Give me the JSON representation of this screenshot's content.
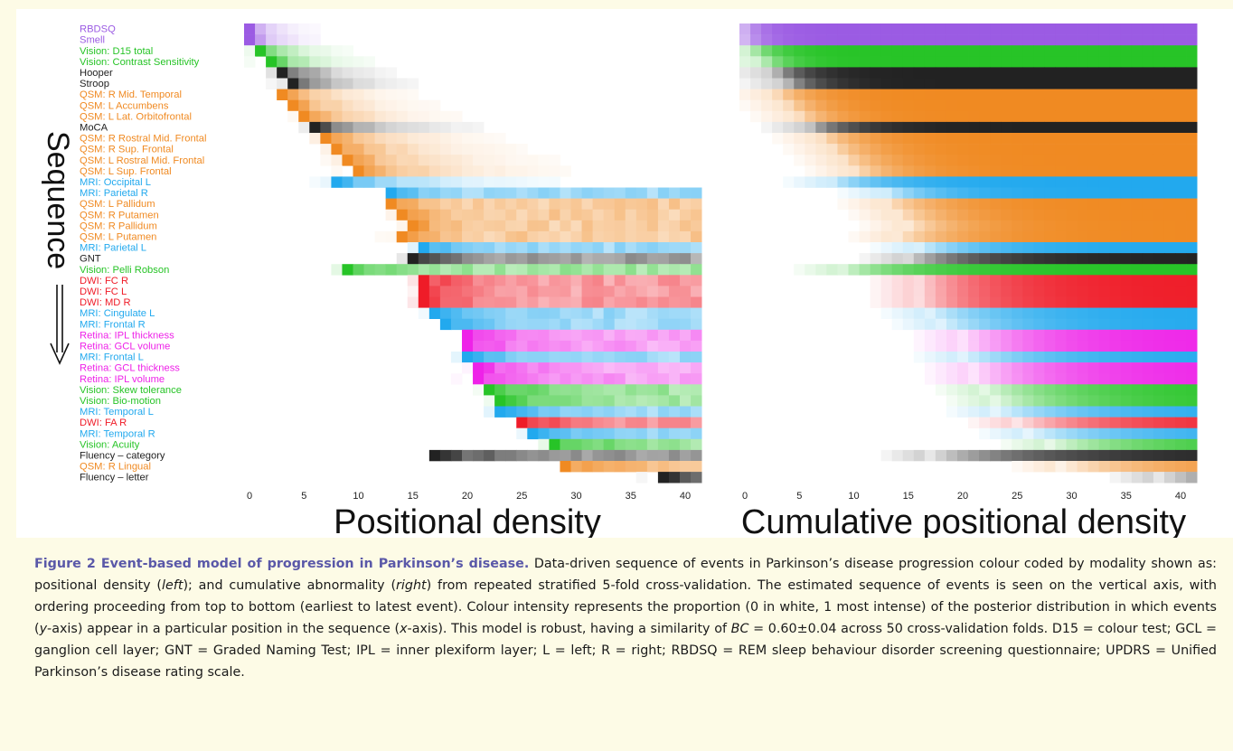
{
  "events": [
    {
      "label": "RBDSQ",
      "color": "#9b5be3"
    },
    {
      "label": "Smell",
      "color": "#9b5be3"
    },
    {
      "label": "Vision: D15 total",
      "color": "#27c427"
    },
    {
      "label": "Vision: Contrast Sensitivity",
      "color": "#27c427"
    },
    {
      "label": "Hooper",
      "color": "#222222"
    },
    {
      "label": "Stroop",
      "color": "#222222"
    },
    {
      "label": "QSM: R Mid. Temporal",
      "color": "#f08a22"
    },
    {
      "label": "QSM: L Accumbens",
      "color": "#f08a22"
    },
    {
      "label": "QSM: L Lat. Orbitofrontal",
      "color": "#f08a22"
    },
    {
      "label": "MoCA",
      "color": "#222222"
    },
    {
      "label": "QSM: R Rostral Mid. Frontal",
      "color": "#f08a22"
    },
    {
      "label": "QSM: R Sup. Frontal",
      "color": "#f08a22"
    },
    {
      "label": "QSM: L Rostral Mid. Frontal",
      "color": "#f08a22"
    },
    {
      "label": "QSM: L Sup. Frontal",
      "color": "#f08a22"
    },
    {
      "label": "MRI: Occipital L",
      "color": "#22a9ee"
    },
    {
      "label": "MRI: Parietal R",
      "color": "#22a9ee"
    },
    {
      "label": "QSM: L Pallidum",
      "color": "#f08a22"
    },
    {
      "label": "QSM: R Putamen",
      "color": "#f08a22"
    },
    {
      "label": "QSM: R Pallidum",
      "color": "#f08a22"
    },
    {
      "label": "QSM: L Putamen",
      "color": "#f08a22"
    },
    {
      "label": "MRI: Parietal L",
      "color": "#22a9ee"
    },
    {
      "label": "GNT",
      "color": "#222222"
    },
    {
      "label": "Vision: Pelli Robson",
      "color": "#27c427"
    },
    {
      "label": "DWI: FC R",
      "color": "#ef1c28"
    },
    {
      "label": "DWI: FC L",
      "color": "#ef1c28"
    },
    {
      "label": "DWI: MD R",
      "color": "#ef1c28"
    },
    {
      "label": "MRI: Cingulate L",
      "color": "#22a9ee"
    },
    {
      "label": "MRI: Frontal R",
      "color": "#22a9ee"
    },
    {
      "label": "Retina: IPL thickness",
      "color": "#ee22e8"
    },
    {
      "label": "Retina: GCL volume",
      "color": "#ee22e8"
    },
    {
      "label": "MRI: Frontal L",
      "color": "#22a9ee"
    },
    {
      "label": "Retina: GCL thickness",
      "color": "#ee22e8"
    },
    {
      "label": "Retina: IPL volume",
      "color": "#ee22e8"
    },
    {
      "label": "Vision: Skew tolerance",
      "color": "#27c427"
    },
    {
      "label": "Vision: Bio-motion",
      "color": "#27c427"
    },
    {
      "label": "MRI: Temporal L",
      "color": "#22a9ee"
    },
    {
      "label": "DWI: FA R",
      "color": "#ef1c28"
    },
    {
      "label": "MRI: Temporal R",
      "color": "#22a9ee"
    },
    {
      "label": "Vision: Acuity",
      "color": "#27c427"
    },
    {
      "label": "Fluency – category",
      "color": "#222222"
    },
    {
      "label": "QSM: R Lingual",
      "color": "#f08a22"
    },
    {
      "label": "Fluency – letter",
      "color": "#222222"
    }
  ],
  "chart_data": [
    {
      "type": "heatmap",
      "title": "Positional density",
      "ylabel": "Sequence",
      "x_ticks": [
        0,
        5,
        10,
        15,
        20,
        25,
        30,
        35,
        40
      ],
      "xlim": [
        0,
        41
      ],
      "rows": "events",
      "note_values": "Colour intensity = proportion of posterior (0 white, 1 most intense); approximate peak position per event",
      "peak_position": [
        0,
        0,
        1,
        2,
        3,
        4,
        3,
        4,
        5,
        6,
        7,
        8,
        9,
        10,
        8,
        13,
        13,
        14,
        15,
        14,
        16,
        15,
        9,
        16,
        16,
        16,
        17,
        18,
        20,
        20,
        20,
        21,
        21,
        22,
        23,
        23,
        25,
        26,
        28,
        17,
        29,
        38
      ]
    },
    {
      "type": "heatmap",
      "title": "Cumulative positional density",
      "x_ticks": [
        0,
        5,
        10,
        15,
        20,
        25,
        30,
        35,
        40
      ],
      "xlim": [
        0,
        41
      ],
      "rows": "events",
      "note_values": "Cumulative proportion rising from 0 (white) to 1 (most intense) along the sequence position"
    }
  ],
  "caption": {
    "title": "Figure 2 Event-based model of progression in Parkinson’s disease.",
    "p1": " Data-driven sequence of events in Parkinson’s disease progression colour coded by modality shown as: positional density (",
    "left": "left",
    "p2": "); and cumulative abnormality (",
    "right": "right",
    "p3": ") from repeated stratified 5-fold cross-validation. The estimated sequence of events is seen on the vertical axis, with ordering proceeding from top to bottom (earliest to latest event). Colour intensity represents the proportion (0 in white, 1 most intense) of the posterior distribution in which events (",
    "y": "y",
    "p4": "-axis) appear in a particular position in the sequence (",
    "x": "x",
    "p5": "-axis). This model is robust, having a similarity of ",
    "bc": "BC",
    "p6": " = 0.60±0.04 across 50 cross-validation folds. D15 = colour test; GCL = ganglion cell layer; GNT = Graded Naming Test; IPL = inner plexiform layer; L = left; R = right; RBDSQ = REM sleep behaviour disorder screening questionnaire; UPDRS = Unified Parkinson’s disease rating scale."
  }
}
